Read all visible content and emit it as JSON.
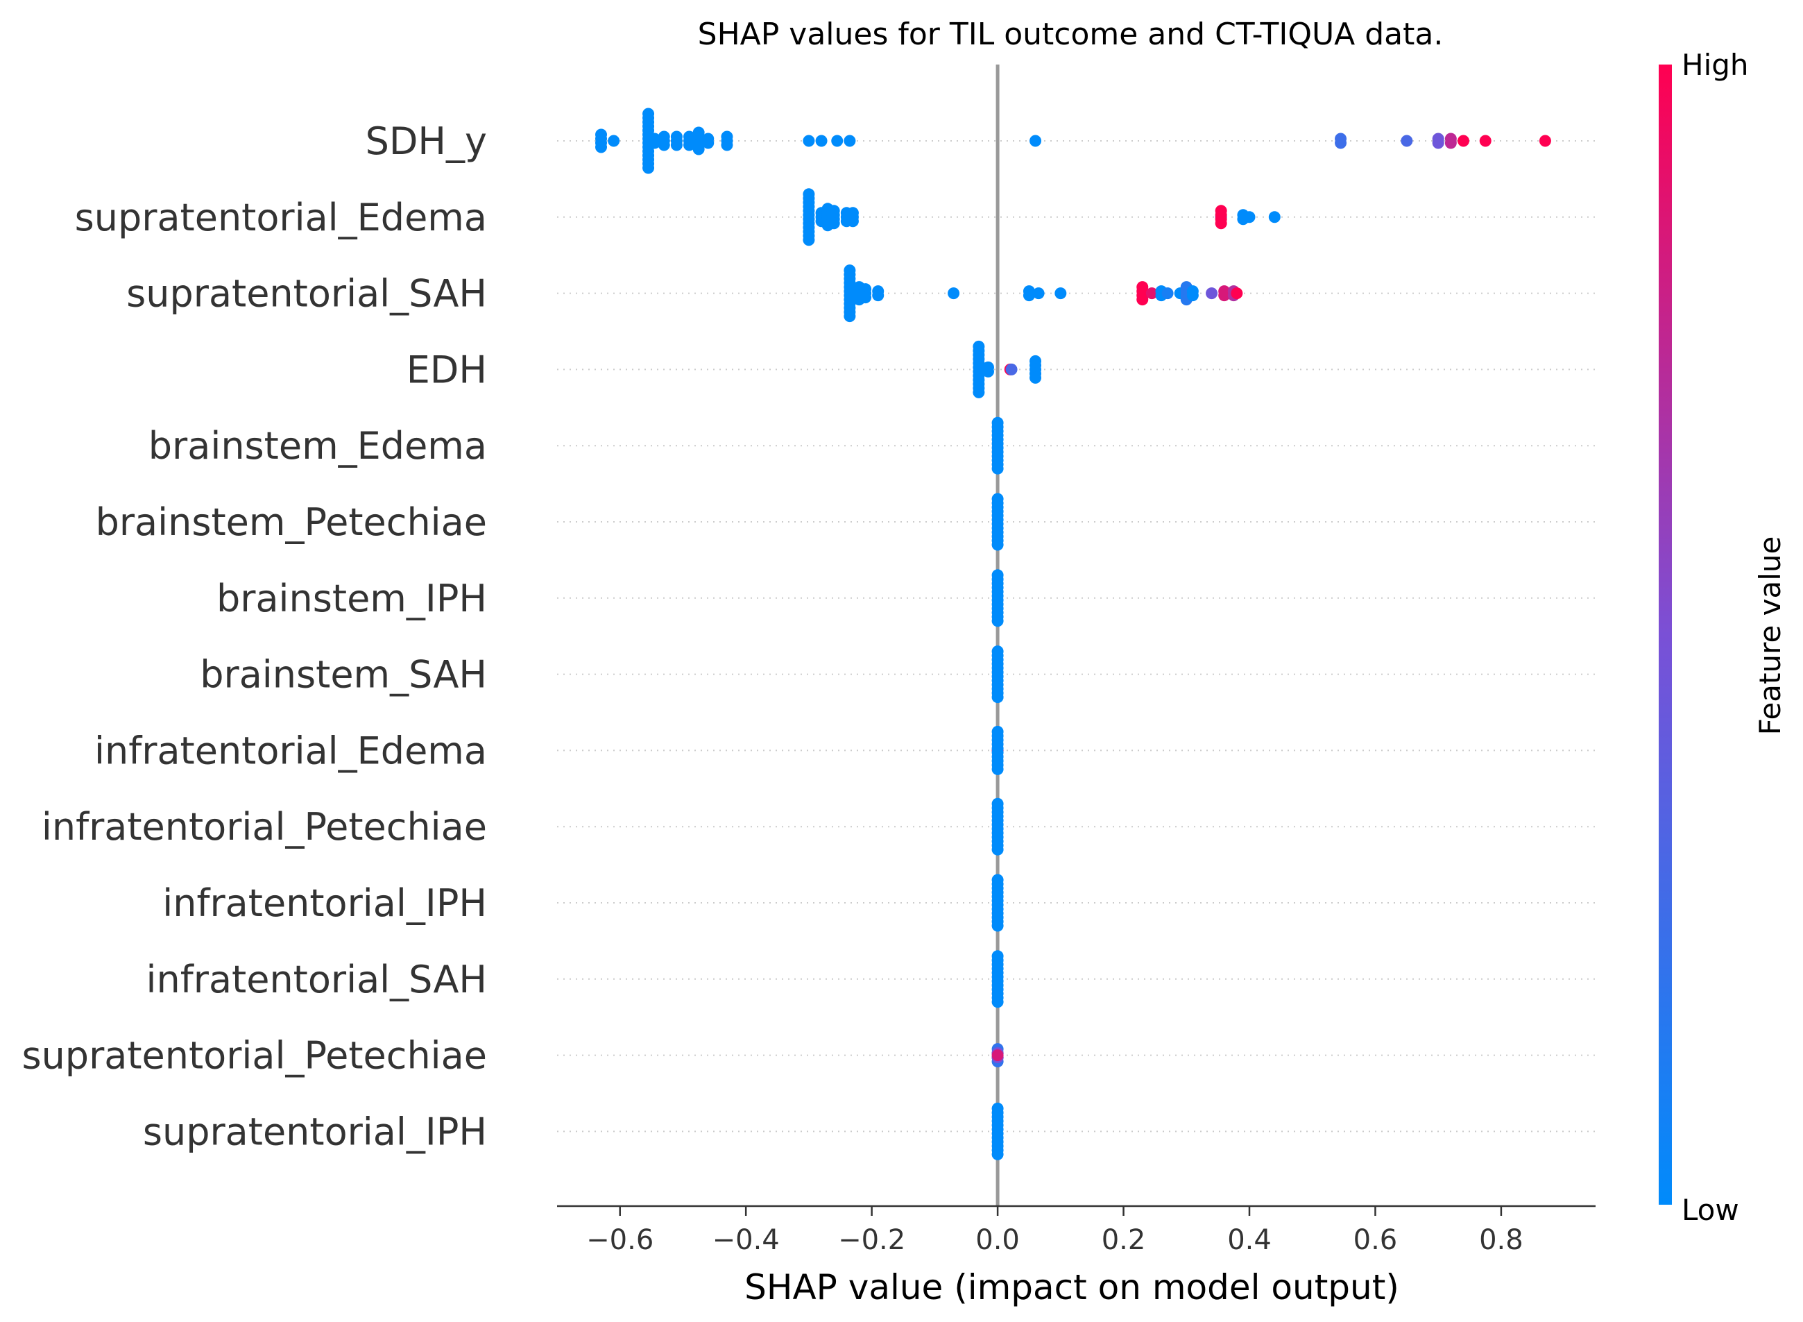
{
  "chart_data": {
    "type": "scatter",
    "title": "SHAP values for TIL outcome and CT-TIQUA data.",
    "xlabel": "SHAP value (impact on model output)",
    "xlim": [
      -0.7,
      0.95
    ],
    "xticks": [
      -0.6,
      -0.4,
      -0.2,
      0.0,
      0.2,
      0.4,
      0.6,
      0.8
    ],
    "xtick_labels": [
      "−0.6",
      "−0.4",
      "−0.2",
      "0.0",
      "0.2",
      "0.4",
      "0.6",
      "0.8"
    ],
    "zero_line": 0.0,
    "colorbar": {
      "label": "Feature value",
      "high_label": "High",
      "low_label": "Low",
      "low_color": "#008bfb",
      "high_color": "#ff0051"
    },
    "features": [
      {
        "name": "SDH_y",
        "points": [
          {
            "x": -0.63,
            "v": 0,
            "n": 4
          },
          {
            "x": -0.61,
            "v": 0,
            "n": 1
          },
          {
            "x": -0.555,
            "v": 0,
            "n": 14
          },
          {
            "x": -0.545,
            "v": 0,
            "n": 2
          },
          {
            "x": -0.53,
            "v": 0,
            "n": 3
          },
          {
            "x": -0.51,
            "v": 0,
            "n": 3
          },
          {
            "x": -0.49,
            "v": 0,
            "n": 3
          },
          {
            "x": -0.475,
            "v": 0,
            "n": 5
          },
          {
            "x": -0.46,
            "v": 0,
            "n": 2
          },
          {
            "x": -0.43,
            "v": 0,
            "n": 3
          },
          {
            "x": -0.3,
            "v": 0,
            "n": 1
          },
          {
            "x": -0.28,
            "v": 0,
            "n": 1
          },
          {
            "x": -0.255,
            "v": 0,
            "n": 1
          },
          {
            "x": -0.235,
            "v": 0,
            "n": 1
          },
          {
            "x": 0.06,
            "v": 0,
            "n": 1
          },
          {
            "x": 0.545,
            "v": 0.25,
            "n": 2
          },
          {
            "x": 0.65,
            "v": 0.3,
            "n": 1
          },
          {
            "x": 0.7,
            "v": 0.45,
            "n": 2
          },
          {
            "x": 0.72,
            "v": 0.75,
            "n": 2
          },
          {
            "x": 0.74,
            "v": 1,
            "n": 1
          },
          {
            "x": 0.775,
            "v": 1,
            "n": 1
          },
          {
            "x": 0.87,
            "v": 1,
            "n": 1
          }
        ]
      },
      {
        "name": "supratentorial_Edema",
        "points": [
          {
            "x": -0.3,
            "v": 0,
            "n": 12
          },
          {
            "x": -0.28,
            "v": 0,
            "n": 3
          },
          {
            "x": -0.27,
            "v": 0,
            "n": 5
          },
          {
            "x": -0.26,
            "v": 0,
            "n": 4
          },
          {
            "x": -0.24,
            "v": 0,
            "n": 3
          },
          {
            "x": -0.23,
            "v": 0,
            "n": 3
          },
          {
            "x": 0.355,
            "v": 0,
            "n": 1
          },
          {
            "x": 0.355,
            "v": 1,
            "n": 4
          },
          {
            "x": 0.39,
            "v": 0,
            "n": 2
          },
          {
            "x": 0.4,
            "v": 0,
            "n": 1
          },
          {
            "x": 0.44,
            "v": 0,
            "n": 1
          }
        ]
      },
      {
        "name": "supratentorial_SAH",
        "points": [
          {
            "x": -0.235,
            "v": 0,
            "n": 12
          },
          {
            "x": -0.22,
            "v": 0,
            "n": 4
          },
          {
            "x": -0.21,
            "v": 0,
            "n": 3
          },
          {
            "x": -0.19,
            "v": 0,
            "n": 2
          },
          {
            "x": -0.07,
            "v": 0,
            "n": 1
          },
          {
            "x": 0.05,
            "v": 0,
            "n": 2
          },
          {
            "x": 0.065,
            "v": 0,
            "n": 1
          },
          {
            "x": 0.1,
            "v": 0,
            "n": 1
          },
          {
            "x": 0.23,
            "v": 1,
            "n": 4
          },
          {
            "x": 0.245,
            "v": 0.9,
            "n": 1
          },
          {
            "x": 0.26,
            "v": 0,
            "n": 2
          },
          {
            "x": 0.27,
            "v": 0.1,
            "n": 1
          },
          {
            "x": 0.29,
            "v": 0,
            "n": 1
          },
          {
            "x": 0.3,
            "v": 0.15,
            "n": 4
          },
          {
            "x": 0.31,
            "v": 0,
            "n": 2
          },
          {
            "x": 0.34,
            "v": 0.45,
            "n": 1
          },
          {
            "x": 0.36,
            "v": 0.85,
            "n": 2
          },
          {
            "x": 0.375,
            "v": 0.7,
            "n": 2
          },
          {
            "x": 0.38,
            "v": 1,
            "n": 1
          }
        ]
      },
      {
        "name": "EDH",
        "points": [
          {
            "x": -0.03,
            "v": 0,
            "n": 12
          },
          {
            "x": -0.015,
            "v": 0,
            "n": 2
          },
          {
            "x": 0.02,
            "v": 1,
            "n": 1
          },
          {
            "x": 0.022,
            "v": 0.3,
            "n": 1
          },
          {
            "x": 0.06,
            "v": 0,
            "n": 5
          }
        ]
      },
      {
        "name": "brainstem_Edema",
        "points": [
          {
            "x": 0.0,
            "v": 0,
            "n": 12
          }
        ]
      },
      {
        "name": "brainstem_Petechiae",
        "points": [
          {
            "x": 0.0,
            "v": 0,
            "n": 12
          }
        ]
      },
      {
        "name": "brainstem_IPH",
        "points": [
          {
            "x": 0.0,
            "v": 0,
            "n": 12
          }
        ]
      },
      {
        "name": "brainstem_SAH",
        "points": [
          {
            "x": 0.0,
            "v": 0,
            "n": 12
          }
        ]
      },
      {
        "name": "infratentorial_Edema",
        "points": [
          {
            "x": 0.0,
            "v": 1,
            "n": 1
          },
          {
            "x": 0.0,
            "v": 0.6,
            "n": 1
          },
          {
            "x": 0.0,
            "v": 0,
            "n": 10
          }
        ]
      },
      {
        "name": "infratentorial_Petechiae",
        "points": [
          {
            "x": 0.0,
            "v": 0,
            "n": 12
          }
        ]
      },
      {
        "name": "infratentorial_IPH",
        "points": [
          {
            "x": 0.0,
            "v": 0,
            "n": 12
          }
        ]
      },
      {
        "name": "infratentorial_SAH",
        "points": [
          {
            "x": 0.0,
            "v": 0,
            "n": 12
          }
        ]
      },
      {
        "name": "supratentorial_Petechiae",
        "points": [
          {
            "x": 0.0,
            "v": 1,
            "n": 2
          },
          {
            "x": 0.0,
            "v": 0.7,
            "n": 2
          },
          {
            "x": 0.0,
            "v": 0.2,
            "n": 4
          },
          {
            "x": 0.0,
            "v": 0.5,
            "n": 2
          },
          {
            "x": 0.0,
            "v": 0.85,
            "n": 1
          }
        ]
      },
      {
        "name": "supratentorial_IPH",
        "points": [
          {
            "x": 0.0,
            "v": 0,
            "n": 12
          }
        ]
      }
    ]
  }
}
